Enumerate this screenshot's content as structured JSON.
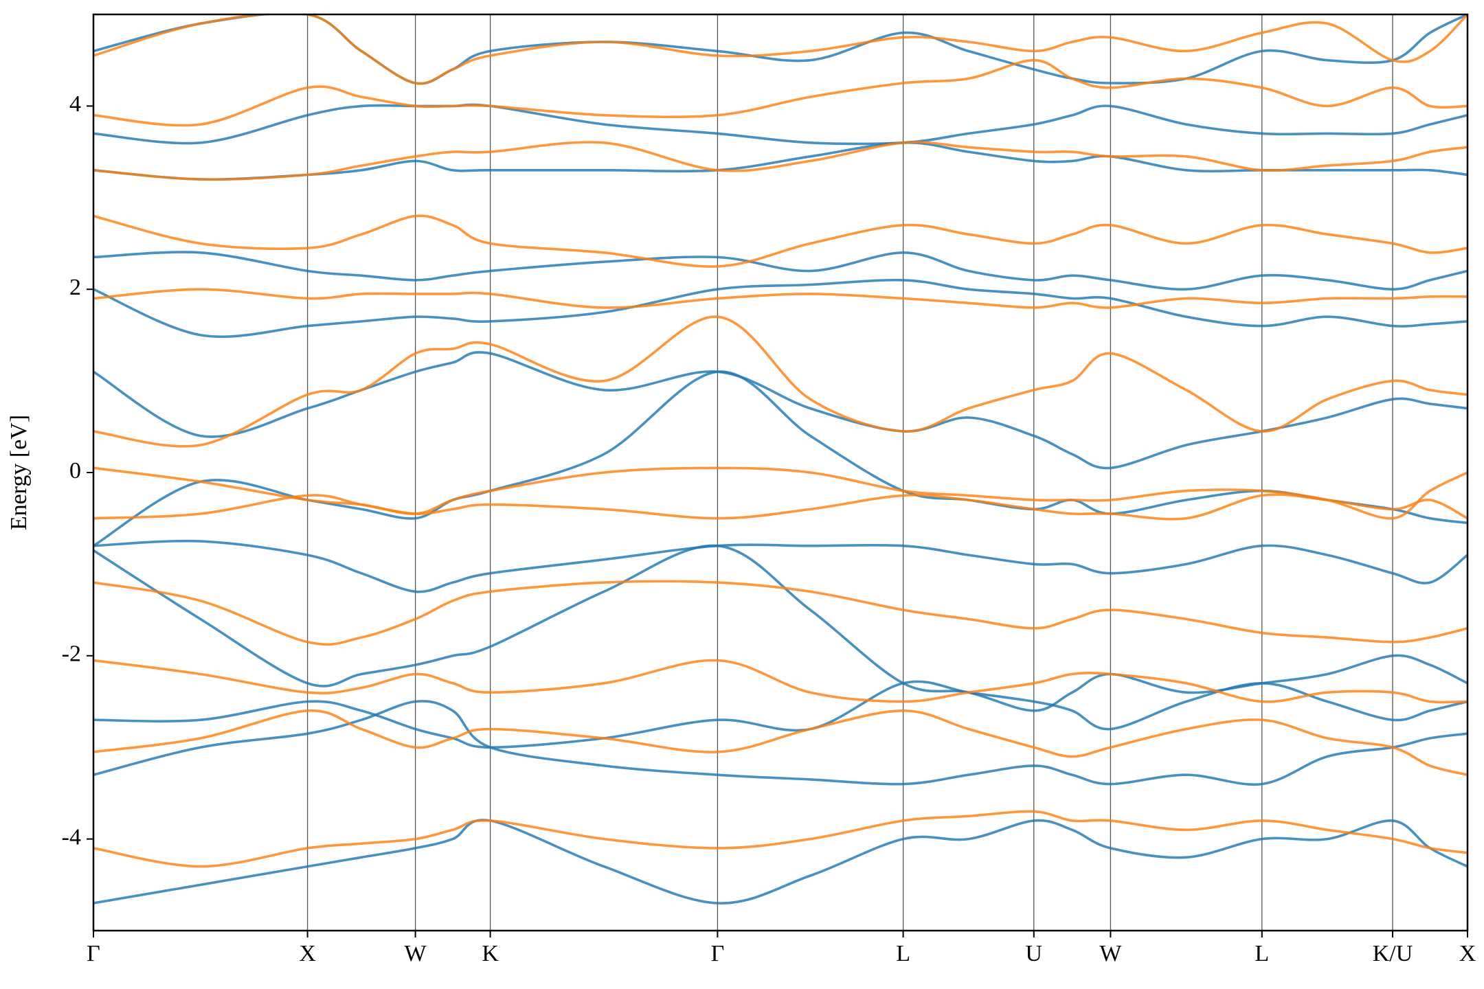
{
  "chart_data": {
    "type": "line",
    "ylabel": "Energy [eV]",
    "ylim": [
      -5,
      5
    ],
    "yticks": [
      -4,
      -2,
      0,
      2,
      4
    ],
    "xlim": [
      0,
      100
    ],
    "xticks": [
      {
        "value": 0,
        "label": "Γ"
      },
      {
        "value": 15.58,
        "label": "X"
      },
      {
        "value": 23.43,
        "label": "W"
      },
      {
        "value": 28.88,
        "label": "K"
      },
      {
        "value": 45.42,
        "label": "Γ"
      },
      {
        "value": 58.93,
        "label": "L"
      },
      {
        "value": 68.44,
        "label": "U"
      },
      {
        "value": 74.02,
        "label": "W"
      },
      {
        "value": 85.04,
        "label": "L"
      },
      {
        "value": 94.55,
        "label": "K/U"
      },
      {
        "value": 100,
        "label": "X"
      }
    ],
    "grid": true,
    "x": [
      0,
      7.79,
      15.58,
      19.5,
      23.43,
      26.15,
      28.88,
      37.15,
      45.42,
      52.17,
      58.93,
      63.68,
      68.44,
      71.23,
      74.02,
      79.53,
      85.04,
      89.8,
      94.55,
      97.27,
      100
    ],
    "series": [
      {
        "color": "#1f77b4",
        "values": [
          -4.7,
          -4.5,
          -4.3,
          -4.2,
          -4.1,
          -4.0,
          -3.8,
          -4.3,
          -4.7,
          -4.4,
          -4.0,
          -4.0,
          -3.8,
          -3.9,
          -4.1,
          -4.2,
          -4.0,
          -4.0,
          -3.8,
          -4.1,
          -4.3
        ]
      },
      {
        "color": "#1f77b4",
        "values": [
          -3.3,
          -3.0,
          -2.85,
          -2.7,
          -2.5,
          -2.6,
          -3.0,
          -3.2,
          -3.3,
          -3.35,
          -3.4,
          -3.3,
          -3.2,
          -3.3,
          -3.4,
          -3.3,
          -3.4,
          -3.1,
          -3.0,
          -2.9,
          -2.85
        ]
      },
      {
        "color": "#1f77b4",
        "values": [
          -2.7,
          -2.7,
          -2.5,
          -2.6,
          -2.8,
          -2.9,
          -3.0,
          -2.9,
          -2.7,
          -2.8,
          -2.3,
          -2.4,
          -2.5,
          -2.6,
          -2.8,
          -2.5,
          -2.3,
          -2.5,
          -2.7,
          -2.6,
          -2.5
        ]
      },
      {
        "color": "#1f77b4",
        "values": [
          -0.85,
          -1.6,
          -2.3,
          -2.2,
          -2.1,
          -2.0,
          -1.9,
          -1.3,
          -0.8,
          -1.5,
          -2.3,
          -2.4,
          -2.6,
          -2.4,
          -2.2,
          -2.4,
          -2.3,
          -2.2,
          -2.0,
          -2.1,
          -2.3
        ]
      },
      {
        "color": "#1f77b4",
        "values": [
          -0.8,
          -0.75,
          -0.9,
          -1.1,
          -1.3,
          -1.2,
          -1.1,
          -0.95,
          -0.8,
          -0.8,
          -0.8,
          -0.9,
          -1.0,
          -1.0,
          -1.1,
          -1.0,
          -0.8,
          -0.9,
          -1.1,
          -1.2,
          -0.9
        ]
      },
      {
        "color": "#1f77b4",
        "values": [
          -0.8,
          -0.1,
          -0.3,
          -0.4,
          -0.5,
          -0.3,
          -0.2,
          0.2,
          1.1,
          0.4,
          -0.2,
          -0.3,
          -0.4,
          -0.3,
          -0.45,
          -0.3,
          -0.2,
          -0.3,
          -0.4,
          -0.5,
          -0.55
        ]
      },
      {
        "color": "#1f77b4",
        "values": [
          1.1,
          0.4,
          0.7,
          0.9,
          1.1,
          1.2,
          1.3,
          0.9,
          1.1,
          0.7,
          0.45,
          0.6,
          0.4,
          0.2,
          0.05,
          0.3,
          0.45,
          0.6,
          0.8,
          0.75,
          0.7
        ]
      },
      {
        "color": "#1f77b4",
        "values": [
          2.0,
          1.5,
          1.6,
          1.65,
          1.7,
          1.68,
          1.65,
          1.75,
          2.0,
          2.05,
          2.1,
          2.0,
          1.95,
          1.9,
          1.9,
          1.7,
          1.6,
          1.7,
          1.6,
          1.62,
          1.65
        ]
      },
      {
        "color": "#1f77b4",
        "values": [
          2.35,
          2.4,
          2.2,
          2.15,
          2.1,
          2.15,
          2.2,
          2.3,
          2.35,
          2.2,
          2.4,
          2.2,
          2.1,
          2.15,
          2.1,
          2.0,
          2.15,
          2.1,
          2.0,
          2.1,
          2.2
        ]
      },
      {
        "color": "#1f77b4",
        "values": [
          3.3,
          3.2,
          3.25,
          3.3,
          3.4,
          3.3,
          3.3,
          3.3,
          3.3,
          3.45,
          3.6,
          3.5,
          3.4,
          3.4,
          3.45,
          3.3,
          3.3,
          3.3,
          3.3,
          3.3,
          3.25
        ]
      },
      {
        "color": "#1f77b4",
        "values": [
          3.7,
          3.6,
          3.9,
          4.0,
          4.0,
          4.0,
          4.0,
          3.8,
          3.7,
          3.6,
          3.6,
          3.7,
          3.8,
          3.9,
          4.0,
          3.8,
          3.7,
          3.7,
          3.7,
          3.8,
          3.9
        ]
      },
      {
        "color": "#1f77b4",
        "values": [
          4.6,
          4.9,
          5.0,
          4.6,
          4.25,
          4.4,
          4.6,
          4.7,
          4.6,
          4.5,
          4.8,
          4.6,
          4.4,
          4.3,
          4.25,
          4.3,
          4.6,
          4.5,
          4.5,
          4.8,
          5.0
        ]
      },
      {
        "color": "#ff7f0e",
        "values": [
          -4.1,
          -4.3,
          -4.1,
          -4.05,
          -4.0,
          -3.9,
          -3.8,
          -4.0,
          -4.1,
          -4.0,
          -3.8,
          -3.75,
          -3.7,
          -3.8,
          -3.8,
          -3.9,
          -3.8,
          -3.9,
          -4.0,
          -4.1,
          -4.15
        ]
      },
      {
        "color": "#ff7f0e",
        "values": [
          -3.05,
          -2.9,
          -2.6,
          -2.8,
          -3.0,
          -2.9,
          -2.8,
          -2.9,
          -3.05,
          -2.8,
          -2.6,
          -2.8,
          -3.0,
          -3.1,
          -3.0,
          -2.8,
          -2.7,
          -2.9,
          -3.0,
          -3.2,
          -3.3
        ]
      },
      {
        "color": "#ff7f0e",
        "values": [
          -2.05,
          -2.2,
          -2.4,
          -2.35,
          -2.2,
          -2.3,
          -2.4,
          -2.3,
          -2.05,
          -2.4,
          -2.5,
          -2.4,
          -2.3,
          -2.2,
          -2.2,
          -2.3,
          -2.5,
          -2.4,
          -2.4,
          -2.5,
          -2.5
        ]
      },
      {
        "color": "#ff7f0e",
        "values": [
          -1.2,
          -1.4,
          -1.85,
          -1.8,
          -1.6,
          -1.4,
          -1.3,
          -1.2,
          -1.2,
          -1.3,
          -1.5,
          -1.6,
          -1.7,
          -1.6,
          -1.5,
          -1.6,
          -1.75,
          -1.8,
          -1.85,
          -1.8,
          -1.7
        ]
      },
      {
        "color": "#ff7f0e",
        "values": [
          -0.5,
          -0.45,
          -0.25,
          -0.35,
          -0.45,
          -0.4,
          -0.35,
          -0.4,
          -0.5,
          -0.4,
          -0.25,
          -0.3,
          -0.4,
          -0.45,
          -0.45,
          -0.5,
          -0.25,
          -0.3,
          -0.4,
          -0.3,
          -0.5
        ]
      },
      {
        "color": "#ff7f0e",
        "values": [
          0.05,
          -0.1,
          -0.3,
          -0.35,
          -0.45,
          -0.3,
          -0.2,
          0.0,
          0.05,
          0.0,
          -0.2,
          -0.25,
          -0.3,
          -0.3,
          -0.3,
          -0.2,
          -0.2,
          -0.3,
          -0.5,
          -0.2,
          0.0
        ]
      },
      {
        "color": "#ff7f0e",
        "values": [
          0.45,
          0.3,
          0.85,
          0.9,
          1.3,
          1.35,
          1.4,
          1.0,
          1.7,
          0.8,
          0.45,
          0.7,
          0.9,
          1.0,
          1.3,
          0.9,
          0.45,
          0.8,
          1.0,
          0.9,
          0.85
        ]
      },
      {
        "color": "#ff7f0e",
        "values": [
          1.9,
          2.0,
          1.9,
          1.95,
          1.95,
          1.95,
          1.95,
          1.8,
          1.9,
          1.95,
          1.9,
          1.85,
          1.8,
          1.85,
          1.8,
          1.9,
          1.85,
          1.9,
          1.9,
          1.92,
          1.92
        ]
      },
      {
        "color": "#ff7f0e",
        "values": [
          2.8,
          2.5,
          2.45,
          2.6,
          2.8,
          2.7,
          2.5,
          2.4,
          2.25,
          2.5,
          2.7,
          2.6,
          2.5,
          2.6,
          2.7,
          2.5,
          2.7,
          2.6,
          2.5,
          2.4,
          2.45
        ]
      },
      {
        "color": "#ff7f0e",
        "values": [
          3.3,
          3.2,
          3.25,
          3.35,
          3.45,
          3.5,
          3.5,
          3.6,
          3.3,
          3.4,
          3.6,
          3.55,
          3.5,
          3.5,
          3.45,
          3.45,
          3.3,
          3.35,
          3.4,
          3.5,
          3.55
        ]
      },
      {
        "color": "#ff7f0e",
        "values": [
          3.9,
          3.8,
          4.2,
          4.1,
          4.0,
          4.0,
          4.0,
          3.9,
          3.9,
          4.1,
          4.25,
          4.3,
          4.5,
          4.3,
          4.2,
          4.3,
          4.2,
          4.0,
          4.2,
          4.0,
          4.0
        ]
      },
      {
        "color": "#ff7f0e",
        "values": [
          4.55,
          4.9,
          5.0,
          4.6,
          4.25,
          4.4,
          4.55,
          4.7,
          4.55,
          4.6,
          4.75,
          4.7,
          4.6,
          4.7,
          4.75,
          4.6,
          4.8,
          4.9,
          4.5,
          4.6,
          5.0
        ]
      }
    ]
  }
}
